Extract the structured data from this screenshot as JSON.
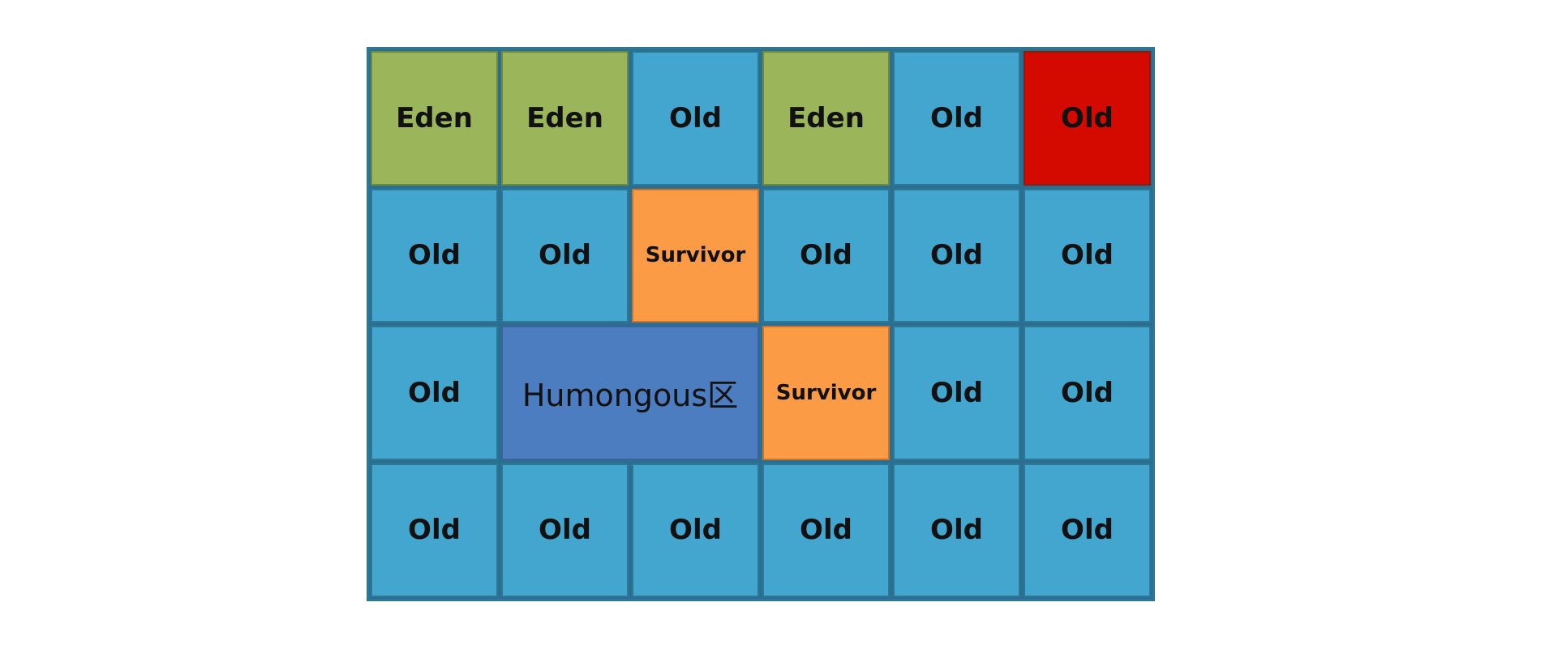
{
  "colors": {
    "eden": "#9bb65a",
    "old": "#42a6cf",
    "old_full": "#d40a00",
    "survivor": "#fb9b45",
    "humongous": "#4b7dc0"
  },
  "regions": [
    {
      "label": "Eden",
      "type": "eden"
    },
    {
      "label": "Eden",
      "type": "eden"
    },
    {
      "label": "Old",
      "type": "old"
    },
    {
      "label": "Eden",
      "type": "eden"
    },
    {
      "label": "Old",
      "type": "old"
    },
    {
      "label": "Old",
      "type": "old-full"
    },
    {
      "label": "Old",
      "type": "old"
    },
    {
      "label": "Old",
      "type": "old"
    },
    {
      "label": "Survivor",
      "type": "survivor"
    },
    {
      "label": "Old",
      "type": "old"
    },
    {
      "label": "Old",
      "type": "old"
    },
    {
      "label": "Old",
      "type": "old"
    },
    {
      "label": "Old",
      "type": "old"
    },
    {
      "label": "Humongous区",
      "type": "humongous"
    },
    {
      "label": "Survivor",
      "type": "survivor"
    },
    {
      "label": "Old",
      "type": "old"
    },
    {
      "label": "Old",
      "type": "old"
    },
    {
      "label": "Old",
      "type": "old"
    },
    {
      "label": "Old",
      "type": "old"
    },
    {
      "label": "Old",
      "type": "old"
    },
    {
      "label": "Old",
      "type": "old"
    },
    {
      "label": "Old",
      "type": "old"
    },
    {
      "label": "Old",
      "type": "old"
    }
  ]
}
